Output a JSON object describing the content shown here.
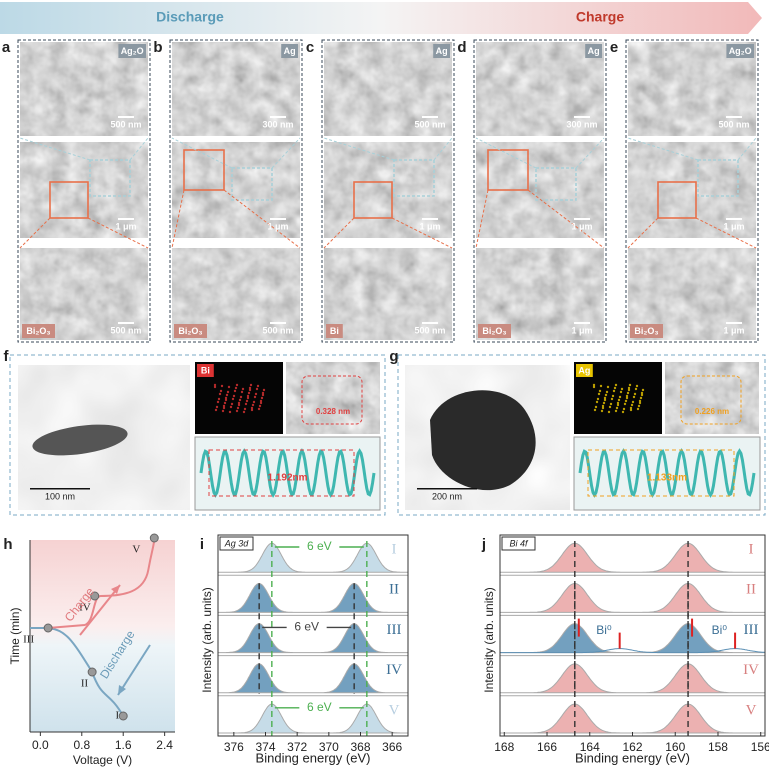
{
  "header": {
    "discharge": "Discharge",
    "charge": "Charge"
  },
  "panels": [
    {
      "label": "a",
      "top": {
        "phase": "Ag₂O",
        "scale": "500 nm"
      },
      "middle": {
        "scale": "1 μm"
      },
      "bottom": {
        "phase": "Bi₂O₃",
        "scale": "500 nm"
      }
    },
    {
      "label": "b",
      "top": {
        "phase": "Ag",
        "scale": "300 nm"
      },
      "middle": {
        "scale": "1 μm"
      },
      "bottom": {
        "phase": "Bi₂O₃",
        "scale": "500 nm"
      }
    },
    {
      "label": "c",
      "top": {
        "phase": "Ag",
        "scale": "500 nm"
      },
      "middle": {
        "scale": "1 μm"
      },
      "bottom": {
        "phase": "Bi",
        "scale": "500 nm"
      }
    },
    {
      "label": "d",
      "top": {
        "phase": "Ag",
        "scale": "300 nm"
      },
      "middle": {
        "scale": "1 μm"
      },
      "bottom": {
        "phase": "Bi₂O₃",
        "scale": "1 μm"
      }
    },
    {
      "label": "e",
      "top": {
        "phase": "Ag₂O",
        "scale": "500 nm"
      },
      "middle": {
        "scale": "1 μm"
      },
      "bottom": {
        "phase": "Bi₂O₃",
        "scale": "1 μm"
      }
    }
  ],
  "tem": [
    {
      "label": "f",
      "scale": "100 nm",
      "element": "Bi",
      "d_spacing": "0.328 nm",
      "profile": "1.192nm"
    },
    {
      "label": "g",
      "scale": "200 nm",
      "element": "Ag",
      "d_spacing": "0.226 nm",
      "profile": "1.133nm"
    }
  ],
  "chart_data": [
    {
      "type": "line",
      "label": "h",
      "xlabel": "Voltage (V)",
      "ylabel": "Time (min)",
      "xlim": [
        -0.2,
        2.6
      ],
      "xticks": [
        {
          "value": 0,
          "label": "0.0"
        },
        0.8,
        1.6,
        2.4
      ],
      "points": [
        {
          "name": "I",
          "voltage": 1.6
        },
        {
          "name": "II",
          "voltage": 1.0
        },
        {
          "name": "III",
          "voltage": 0.15
        },
        {
          "name": "IV",
          "voltage": 1.05
        },
        {
          "name": "V",
          "voltage": 2.2
        }
      ],
      "annotations": [
        "Charge",
        "Discharge"
      ]
    },
    {
      "type": "xps",
      "label": "i",
      "core_level": "Ag 3d",
      "xlabel": "Binding energy (eV)",
      "ylabel": "Intensity (arb. units)",
      "xlim": [
        377,
        365
      ],
      "xticks": [
        376,
        374,
        372,
        370,
        368,
        366
      ],
      "series": [
        {
          "name": "I",
          "color": "#bcd6e4",
          "peaks": [
            373.6,
            367.6
          ]
        },
        {
          "name": "II",
          "color": "#5b8fb4",
          "peaks": [
            374.4,
            368.4
          ]
        },
        {
          "name": "III",
          "color": "#5b8fb4",
          "peaks": [
            374.4,
            368.4
          ]
        },
        {
          "name": "IV",
          "color": "#5b8fb4",
          "peaks": [
            374.4,
            368.4
          ]
        },
        {
          "name": "V",
          "color": "#bcd6e4",
          "peaks": [
            373.6,
            367.6
          ]
        }
      ],
      "annotations": [
        "6 eV",
        "6 eV",
        "6 eV"
      ]
    },
    {
      "type": "xps",
      "label": "j",
      "core_level": "Bi 4f",
      "xlabel": "Binding energy (eV)",
      "ylabel": "Intensity (arb. units)",
      "xlim": [
        168.2,
        155.8
      ],
      "xticks": [
        168,
        166,
        164,
        162,
        160,
        158,
        156
      ],
      "series": [
        {
          "name": "I",
          "color": "#e9a3a3",
          "peaks": [
            164.7,
            159.4
          ]
        },
        {
          "name": "II",
          "color": "#e9a3a3",
          "peaks": [
            164.7,
            159.4
          ]
        },
        {
          "name": "III",
          "color": "#5b8fb4",
          "peaks": [
            164.7,
            159.4
          ],
          "metal_peaks": [
            162.6,
            157.2
          ],
          "metal_label": "Bi⁰"
        },
        {
          "name": "IV",
          "color": "#e9a3a3",
          "peaks": [
            164.7,
            159.4
          ]
        },
        {
          "name": "V",
          "color": "#e9a3a3",
          "peaks": [
            164.7,
            159.4
          ]
        }
      ]
    }
  ]
}
